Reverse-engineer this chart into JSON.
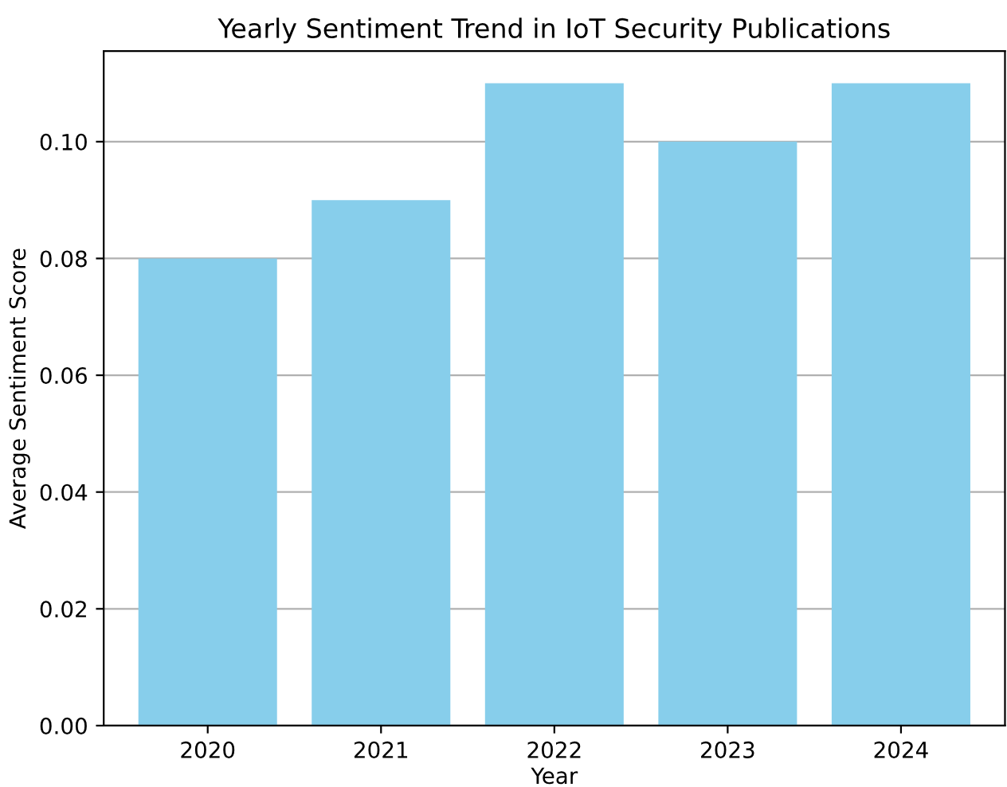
{
  "chart_data": {
    "type": "bar",
    "title": "Yearly Sentiment Trend in IoT Security Publications",
    "xlabel": "Year",
    "ylabel": "Average Sentiment Score",
    "categories": [
      "2020",
      "2021",
      "2022",
      "2023",
      "2024"
    ],
    "values": [
      0.08,
      0.09,
      0.11,
      0.1,
      0.11
    ],
    "color": "#87ceeb",
    "ylim": [
      0,
      0.1155
    ],
    "yticks": [
      {
        "value": 0,
        "label": "0.00"
      },
      {
        "value": 0.02,
        "label": "0.02"
      },
      {
        "value": 0.04,
        "label": "0.04"
      },
      {
        "value": 0.06,
        "label": "0.06"
      },
      {
        "value": 0.08,
        "label": "0.08"
      },
      {
        "value": 0.1,
        "label": "0.10"
      }
    ],
    "grid": "y"
  }
}
